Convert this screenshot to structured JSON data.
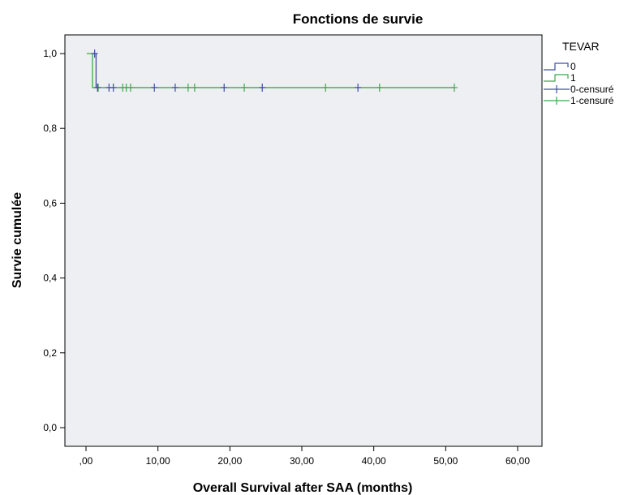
{
  "chart_data": {
    "type": "line",
    "subtype": "kaplan-meier step",
    "title": "Fonctions de survie",
    "xlabel": "Overall Survival after SAA (months)",
    "ylabel": "Survie cumulée",
    "xlim": [
      0,
      60
    ],
    "ylim": [
      0,
      1.0
    ],
    "x_ticks": [
      0,
      10,
      20,
      30,
      40,
      50,
      60
    ],
    "x_tick_labels": [
      ",00",
      "10,00",
      "20,00",
      "30,00",
      "40,00",
      "50,00",
      "60,00"
    ],
    "y_ticks": [
      0,
      0.2,
      0.4,
      0.6,
      0.8,
      1.0
    ],
    "y_tick_labels": [
      "0,0",
      "0,2",
      "0,4",
      "0,6",
      "0,8",
      "1,0"
    ],
    "grid": false,
    "plot_background": "#eeeff2",
    "legend": {
      "title": "TEVAR",
      "placement": "right",
      "entries": [
        "0",
        "1",
        "0-censuré",
        "1-censuré"
      ]
    },
    "series": [
      {
        "name": "0",
        "color": "#3d4fa4",
        "steps": [
          [
            0.9,
            1.0
          ],
          [
            1.4,
            1.0
          ],
          [
            1.4,
            0.909
          ],
          [
            1.6,
            0.909
          ]
        ],
        "censored": [
          [
            1.2,
            1.0
          ],
          [
            1.6,
            0.909
          ],
          [
            3.2,
            0.909
          ],
          [
            3.8,
            0.909
          ],
          [
            9.5,
            0.909
          ],
          [
            12.4,
            0.909
          ],
          [
            19.2,
            0.909
          ],
          [
            24.5,
            0.909
          ],
          [
            37.8,
            0.909
          ]
        ]
      },
      {
        "name": "1",
        "color": "#3ea84a",
        "steps": [
          [
            0.1,
            1.0
          ],
          [
            0.9,
            1.0
          ],
          [
            0.9,
            0.909
          ],
          [
            51.2,
            0.909
          ]
        ],
        "censored": [
          [
            1.7,
            0.909
          ],
          [
            5.1,
            0.909
          ],
          [
            5.6,
            0.909
          ],
          [
            6.2,
            0.909
          ],
          [
            14.2,
            0.909
          ],
          [
            15.1,
            0.909
          ],
          [
            22.0,
            0.909
          ],
          [
            33.3,
            0.909
          ],
          [
            40.8,
            0.909
          ],
          [
            51.2,
            0.909
          ]
        ]
      }
    ]
  }
}
